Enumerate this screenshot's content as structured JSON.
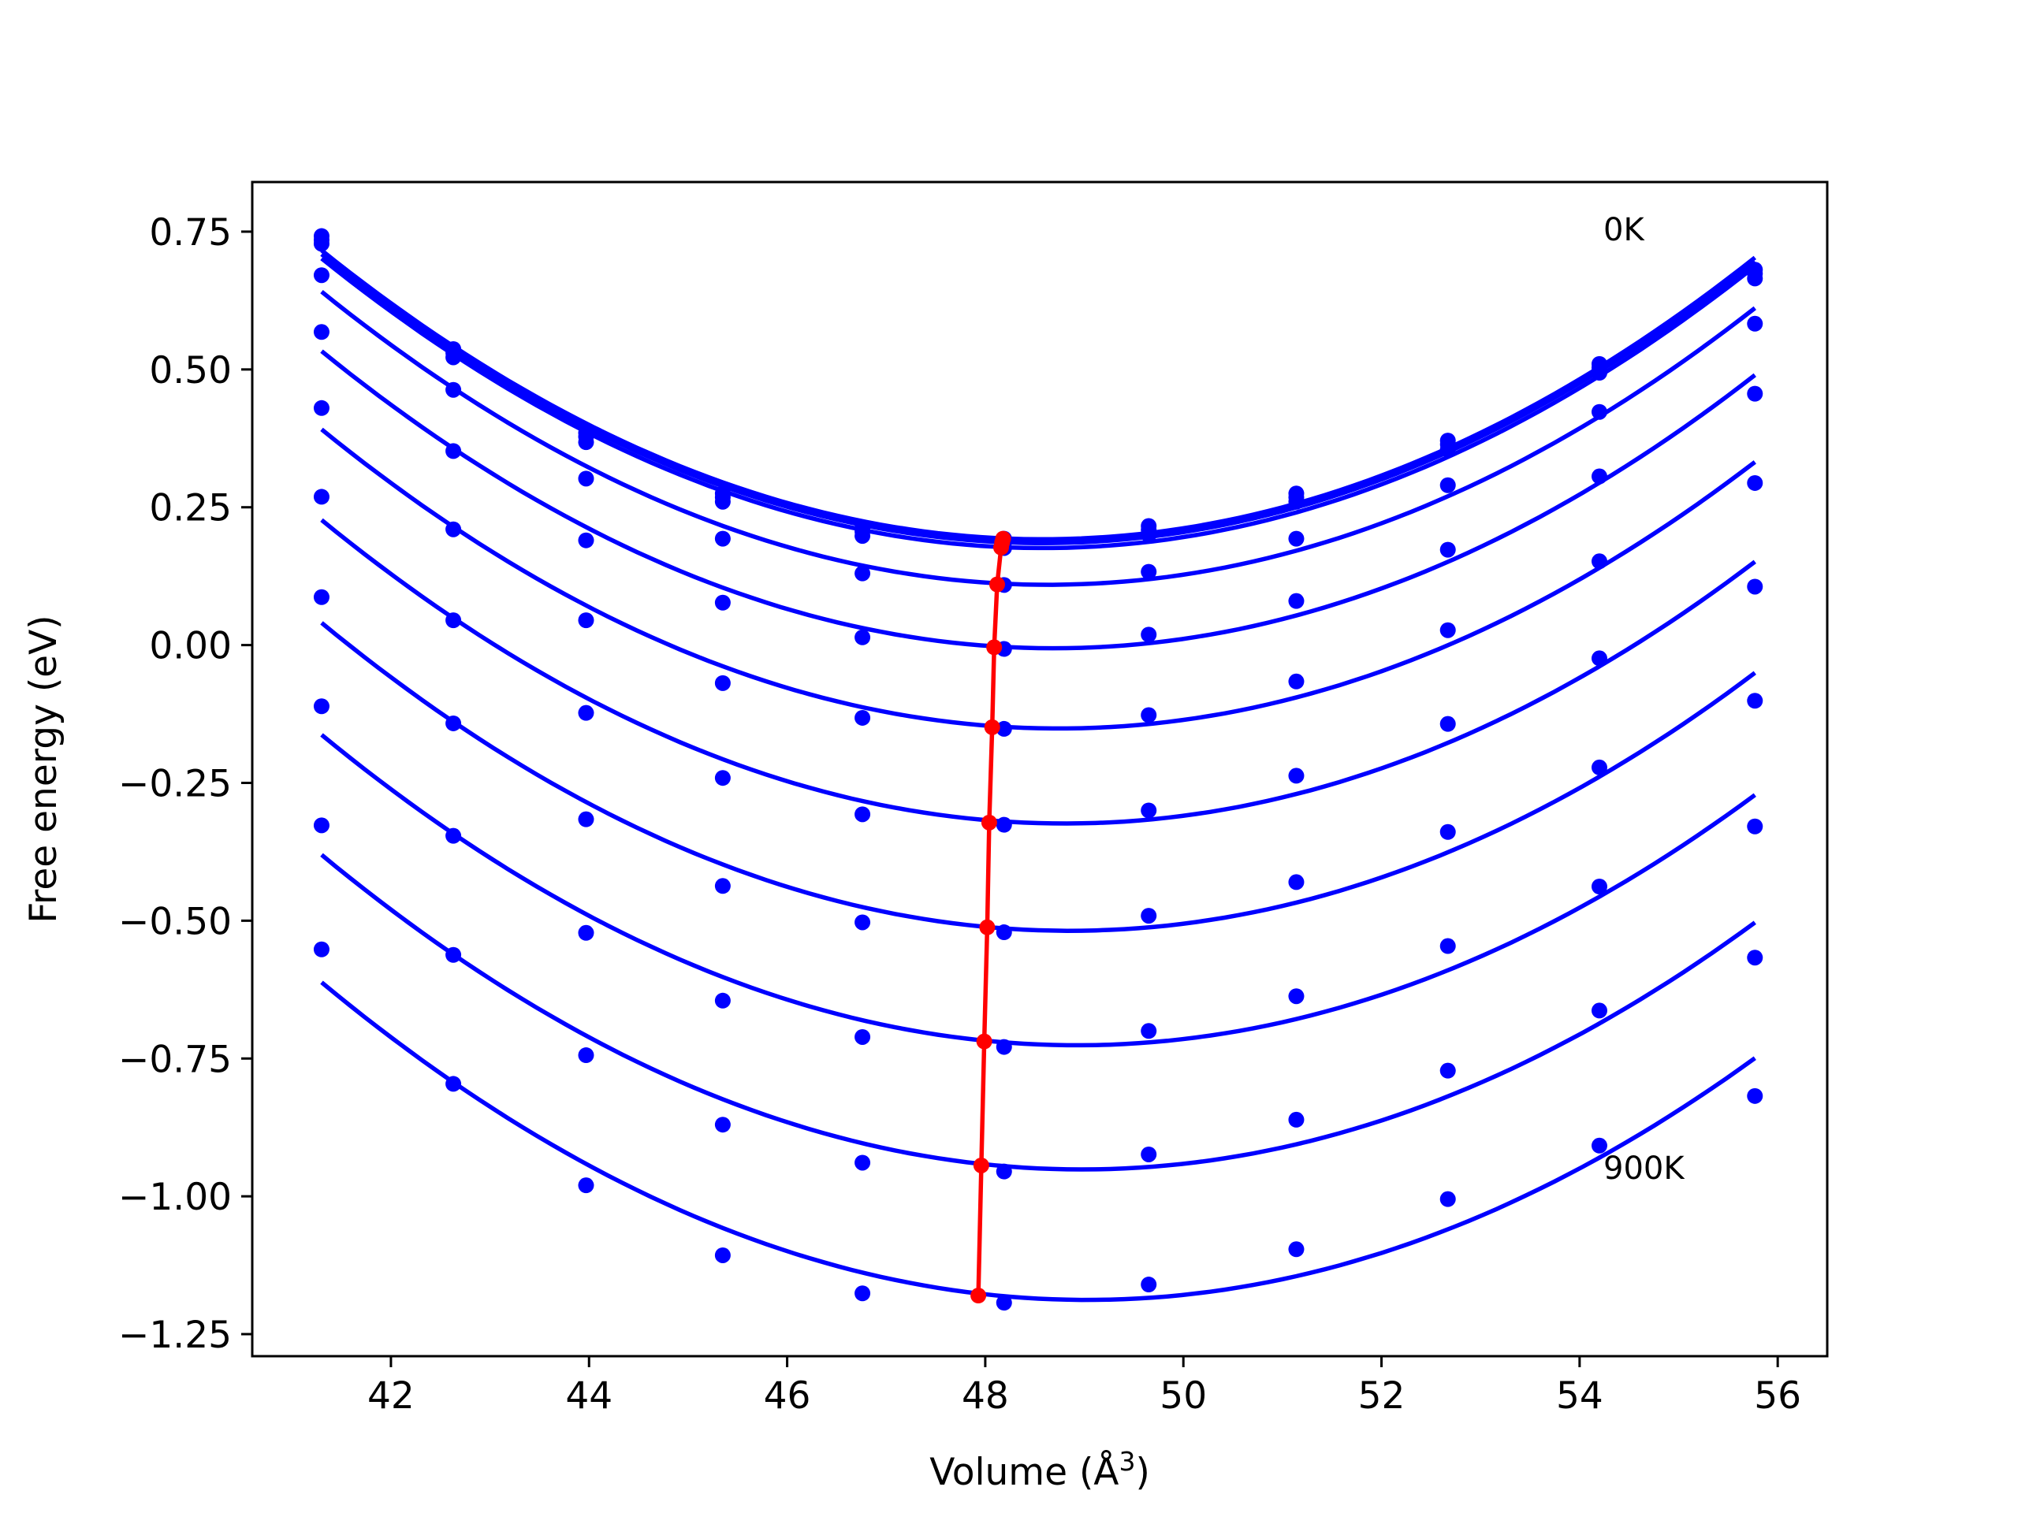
{
  "chart_data": {
    "type": "line",
    "title": "",
    "xlabel_prefix": "Volume (",
    "xlabel_unit": "Å",
    "xlabel_exp": "3",
    "xlabel_suffix": ")",
    "ylabel": "Free energy (eV)",
    "xlim": [
      40.6,
      56.5
    ],
    "ylim": [
      -1.29,
      0.84
    ],
    "xticks": [
      42,
      44,
      46,
      48,
      50,
      52,
      54,
      56
    ],
    "yticks": [
      0.75,
      0.5,
      0.25,
      0.0,
      -0.25,
      -0.5,
      -0.75,
      -1.0,
      -1.25
    ],
    "ytick_labels": [
      "0.75",
      "0.50",
      "0.25",
      "0.00",
      "−0.25",
      "−0.50",
      "−0.75",
      "−1.00",
      "−1.25"
    ],
    "grid": false,
    "annotations": [
      {
        "text": "0K",
        "x": 54.2,
        "y": 0.75
      },
      {
        "text": "900K",
        "x": 54.2,
        "y": -0.95
      }
    ],
    "x_volumes": [
      41.3,
      42.63,
      43.97,
      45.35,
      46.76,
      48.19,
      49.65,
      51.14,
      52.67,
      54.2,
      55.77
    ],
    "series": [
      {
        "color": "#0000ff",
        "values": [
          0.742,
          0.537,
          0.385,
          0.275,
          0.213,
          0.193,
          0.216,
          0.275,
          0.371,
          0.51,
          0.681
        ]
      },
      {
        "color": "#0000ff",
        "values": [
          0.735,
          0.53,
          0.378,
          0.268,
          0.206,
          0.186,
          0.209,
          0.268,
          0.364,
          0.503,
          0.674
        ]
      },
      {
        "color": "#0000ff",
        "values": [
          0.728,
          0.522,
          0.368,
          0.26,
          0.198,
          0.176,
          0.2,
          0.26,
          0.355,
          0.494,
          0.665
        ]
      },
      {
        "color": "#0000ff",
        "values": [
          0.671,
          0.463,
          0.302,
          0.193,
          0.13,
          0.109,
          0.133,
          0.193,
          0.29,
          0.423,
          0.583
        ]
      },
      {
        "color": "#0000ff",
        "values": [
          0.568,
          0.352,
          0.19,
          0.077,
          0.014,
          -0.007,
          0.019,
          0.08,
          0.173,
          0.306,
          0.456
        ]
      },
      {
        "color": "#0000ff",
        "values": [
          0.43,
          0.21,
          0.045,
          -0.069,
          -0.132,
          -0.152,
          -0.127,
          -0.066,
          0.027,
          0.152,
          0.294
        ]
      },
      {
        "color": "#0000ff",
        "values": [
          0.269,
          0.045,
          -0.123,
          -0.241,
          -0.307,
          -0.326,
          -0.3,
          -0.237,
          -0.143,
          -0.024,
          0.106
        ]
      },
      {
        "color": "#0000ff",
        "values": [
          0.087,
          -0.142,
          -0.316,
          -0.437,
          -0.503,
          -0.521,
          -0.491,
          -0.43,
          -0.339,
          -0.222,
          -0.101
        ]
      },
      {
        "color": "#0000ff",
        "values": [
          -0.111,
          -0.346,
          -0.522,
          -0.645,
          -0.711,
          -0.729,
          -0.7,
          -0.637,
          -0.546,
          -0.438,
          -0.329
        ]
      },
      {
        "color": "#0000ff",
        "values": [
          -0.327,
          -0.562,
          -0.744,
          -0.87,
          -0.939,
          -0.955,
          -0.924,
          -0.861,
          -0.772,
          -0.663,
          -0.567
        ]
      },
      {
        "color": "#0000ff",
        "values": [
          -0.552,
          -0.796,
          -0.98,
          -1.107,
          -1.176,
          -1.193,
          -1.16,
          -1.096,
          -1.005,
          -0.908,
          -0.818
        ]
      }
    ],
    "minimum_curve": {
      "color": "#ff0000",
      "points": [
        {
          "x": 48.18,
          "y": 0.193
        },
        {
          "x": 48.17,
          "y": 0.186
        },
        {
          "x": 48.16,
          "y": 0.177
        },
        {
          "x": 48.12,
          "y": 0.11
        },
        {
          "x": 48.09,
          "y": -0.004
        },
        {
          "x": 48.07,
          "y": -0.149
        },
        {
          "x": 48.04,
          "y": -0.322
        },
        {
          "x": 48.02,
          "y": -0.512
        },
        {
          "x": 47.99,
          "y": -0.719
        },
        {
          "x": 47.96,
          "y": -0.944
        },
        {
          "x": 47.93,
          "y": -1.18
        }
      ]
    }
  }
}
